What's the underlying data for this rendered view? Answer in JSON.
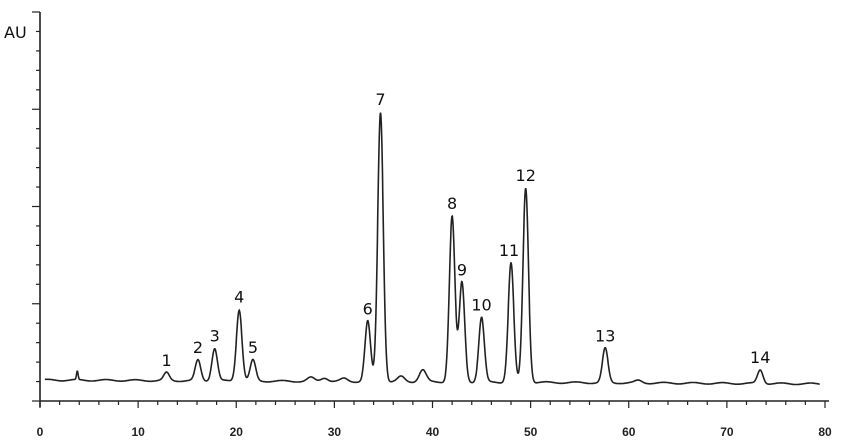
{
  "chart_data": {
    "type": "line",
    "title": "",
    "xlabel": "",
    "ylabel": "AU",
    "xlim": [
      0,
      80
    ],
    "ylim": [
      0,
      20
    ],
    "x_ticks": [
      0,
      10,
      20,
      30,
      40,
      50,
      60,
      70,
      80
    ],
    "y_tick_labels": false,
    "grid": false,
    "line_color": "#222222",
    "baseline": 1.0,
    "peaks": [
      {
        "label": "1",
        "x": 12.9,
        "y": 1.45
      },
      {
        "label": "2",
        "x": 16.1,
        "y": 2.1
      },
      {
        "label": "3",
        "x": 17.8,
        "y": 2.7
      },
      {
        "label": "4",
        "x": 20.3,
        "y": 4.7
      },
      {
        "label": "5",
        "x": 21.7,
        "y": 2.1
      },
      {
        "label": "6",
        "x": 33.4,
        "y": 4.1
      },
      {
        "label": "7",
        "x": 34.7,
        "y": 14.85
      },
      {
        "label": "8",
        "x": 42.0,
        "y": 9.5
      },
      {
        "label": "9",
        "x": 43.0,
        "y": 6.1
      },
      {
        "label": "10",
        "x": 45.0,
        "y": 4.3
      },
      {
        "label": "11",
        "x": 48.0,
        "y": 7.1
      },
      {
        "label": "12",
        "x": 49.5,
        "y": 10.95
      },
      {
        "label": "13",
        "x": 57.6,
        "y": 2.7
      },
      {
        "label": "14",
        "x": 73.4,
        "y": 1.6
      }
    ],
    "minor_peaks": [
      {
        "x": 3.8,
        "y": 1.5
      },
      {
        "x": 27.6,
        "y": 1.2
      },
      {
        "x": 29.0,
        "y": 1.2
      },
      {
        "x": 31.0,
        "y": 1.15
      },
      {
        "x": 36.8,
        "y": 1.25
      },
      {
        "x": 39.0,
        "y": 1.6
      },
      {
        "x": 61.0,
        "y": 1.05
      }
    ]
  }
}
